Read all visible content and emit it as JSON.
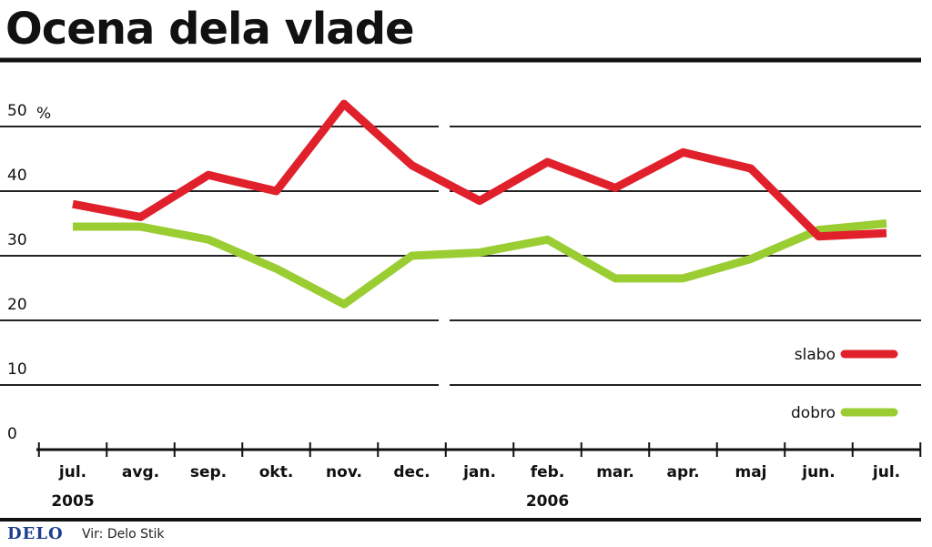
{
  "chart_data": {
    "type": "line",
    "title": "Ocena dela vlade",
    "ylabel": "",
    "xlabel": "",
    "y_unit": "%",
    "ylim": [
      0,
      50
    ],
    "y_ticks": [
      0,
      10,
      20,
      30,
      40,
      50
    ],
    "y_tick_labels": [
      "0",
      "10",
      "20",
      "30",
      "40",
      "50"
    ],
    "categories": [
      "jul.",
      "avg.",
      "sep.",
      "okt.",
      "nov.",
      "dec.",
      "jan.",
      "feb.",
      "mar.",
      "apr.",
      "maj",
      "jun.",
      "jul."
    ],
    "year_labels": [
      {
        "label": "2005",
        "category_index": 0
      },
      {
        "label": "2006",
        "category_index": 7
      }
    ],
    "grid": true,
    "legend_position": "right",
    "series": [
      {
        "name": "slabo",
        "color": "#e0202a",
        "values": [
          38,
          36,
          42.5,
          40,
          53.5,
          44,
          38.5,
          44.5,
          40.5,
          46,
          43.5,
          33,
          33.5
        ]
      },
      {
        "name": "dobro",
        "color": "#9acd32",
        "values": [
          34.5,
          34.5,
          32.5,
          28,
          22.5,
          30,
          30.5,
          32.5,
          26.5,
          26.5,
          29.5,
          34,
          35
        ]
      }
    ]
  },
  "footer": {
    "logo": "DELO",
    "source": "Vir: Delo Stik"
  }
}
